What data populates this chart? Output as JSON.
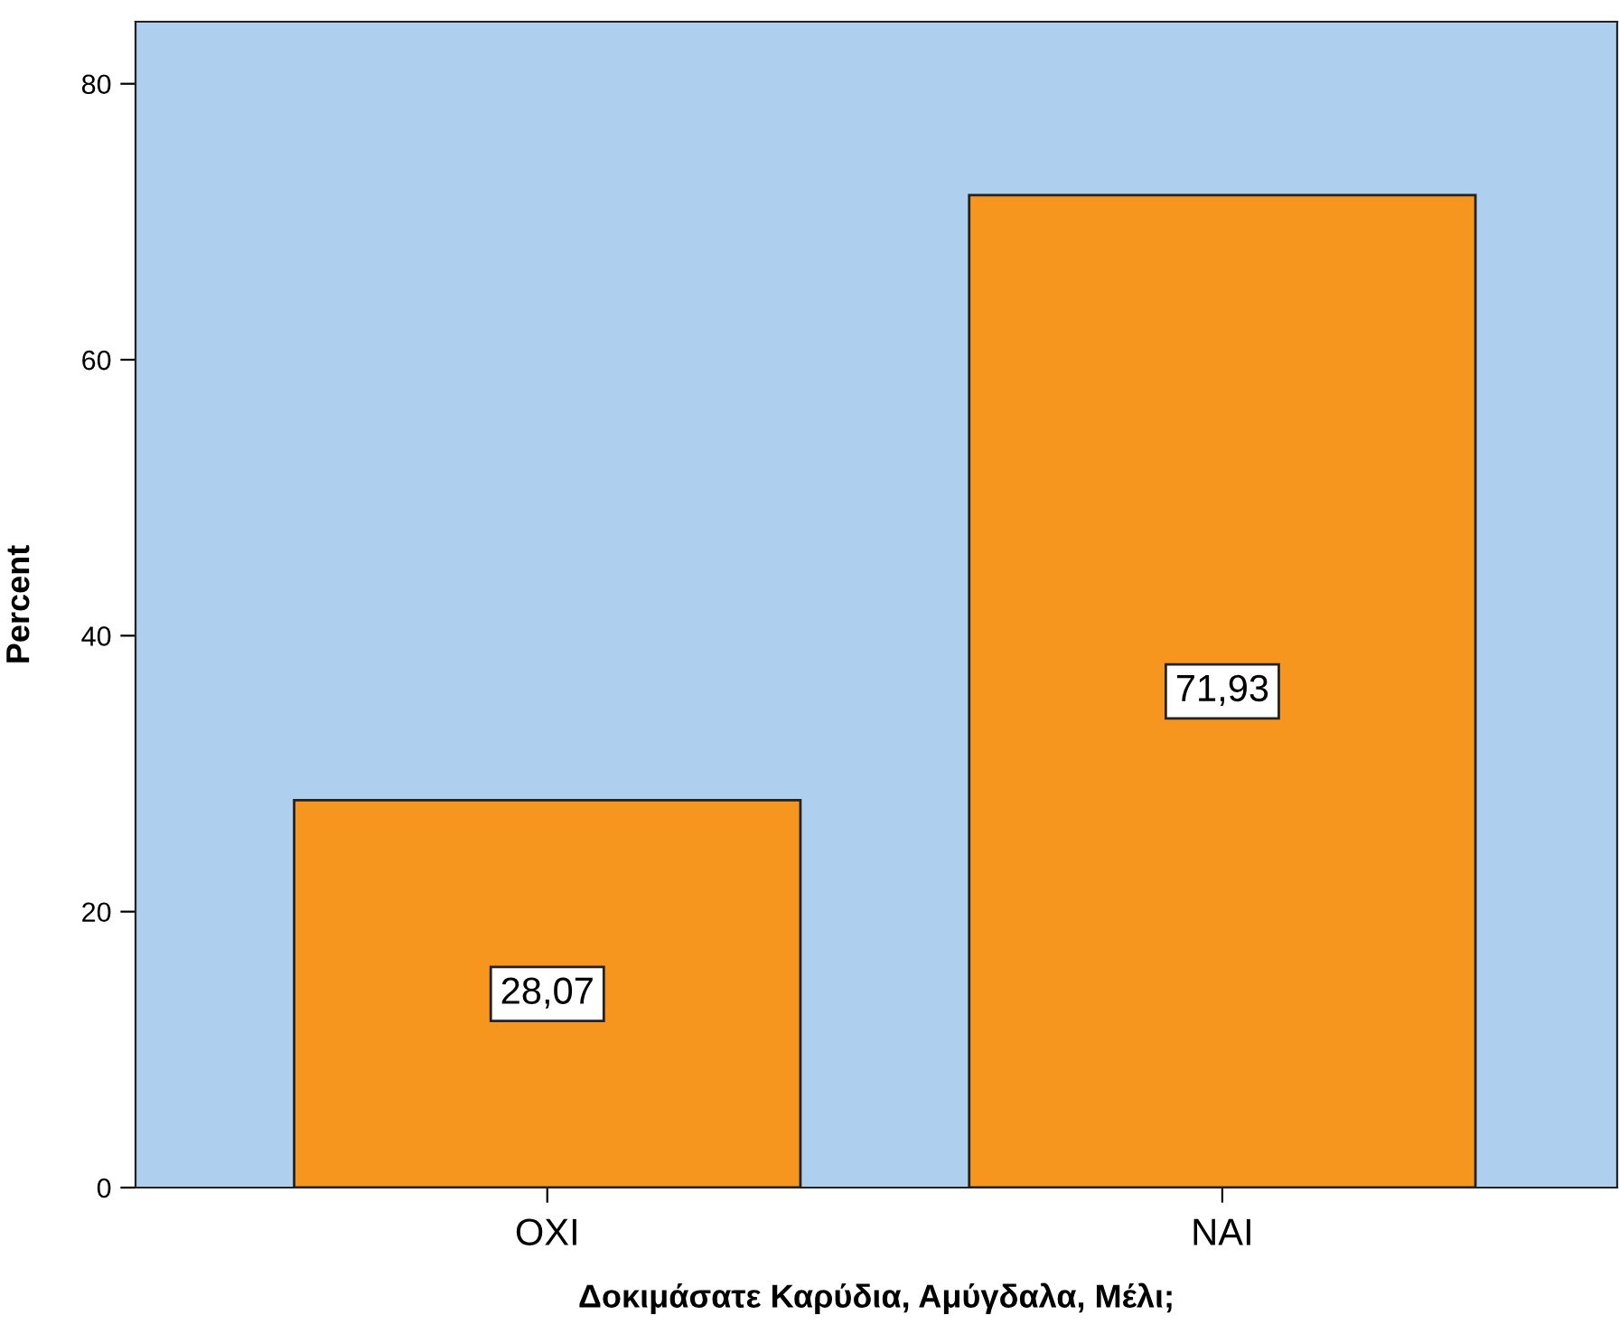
{
  "chart_data": {
    "type": "bar",
    "xlabel": "Δοκιμάσατε Καρύδια, Αμύγδαλα, Μέλι;",
    "ylabel": "Percent",
    "categories": [
      "ΟΧΙ",
      "ΝΑΙ"
    ],
    "values": [
      28.07,
      71.93
    ],
    "value_labels": [
      "28,07",
      "71,93"
    ],
    "color": "#f7961e",
    "ylim": [
      0,
      84.5
    ],
    "yticks": [
      0,
      20,
      40,
      60,
      80
    ],
    "grid": false,
    "legend": false
  }
}
